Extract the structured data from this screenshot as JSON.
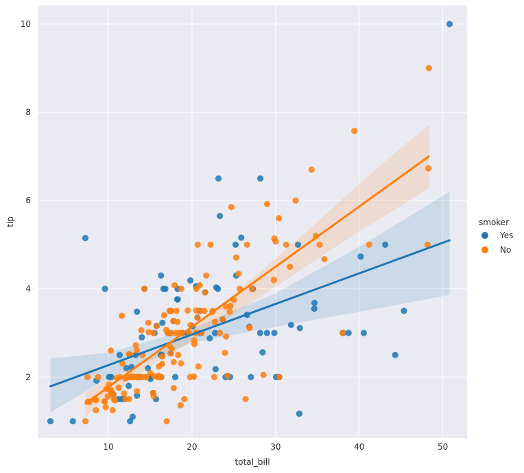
{
  "chart_data": {
    "type": "scatter",
    "title": "",
    "xlabel": "total_bill",
    "ylabel": "tip",
    "xlim": [
      1.55,
      52.9
    ],
    "ylim": [
      0.62,
      10.42
    ],
    "xticks": [
      10,
      20,
      30,
      40,
      50
    ],
    "yticks": [
      2,
      4,
      6,
      8,
      10
    ],
    "grid": true,
    "background": "#EAEAF2",
    "legend": {
      "title": "smoker",
      "placement": "outside-right"
    },
    "series": [
      {
        "name": "Yes",
        "color": "#1F77B4",
        "regression": {
          "x": [
            3.07,
            50.81
          ],
          "y": [
            1.79,
            5.1
          ]
        },
        "ci_upper": [
          [
            3.07,
            2.42
          ],
          [
            10,
            2.55
          ],
          [
            20,
            3.1
          ],
          [
            30,
            3.9
          ],
          [
            40,
            4.95
          ],
          [
            50.81,
            6.2
          ]
        ],
        "ci_lower": [
          [
            3.07,
            1.2
          ],
          [
            10,
            1.98
          ],
          [
            20,
            2.78
          ],
          [
            30,
            3.14
          ],
          [
            40,
            3.48
          ],
          [
            50.81,
            3.86
          ]
        ],
        "points": [
          [
            3.07,
            1.0
          ],
          [
            5.75,
            1.0
          ],
          [
            7.25,
            5.15
          ],
          [
            8.58,
            1.92
          ],
          [
            9.6,
            4.0
          ],
          [
            10.07,
            2.0
          ],
          [
            10.34,
            2.0
          ],
          [
            10.59,
            1.61
          ],
          [
            11.17,
            1.5
          ],
          [
            11.35,
            2.5
          ],
          [
            11.59,
            1.5
          ],
          [
            11.87,
            1.5
          ],
          [
            12.16,
            2.2
          ],
          [
            12.43,
            1.8
          ],
          [
            12.6,
            1.0
          ],
          [
            12.76,
            2.23
          ],
          [
            12.9,
            1.1
          ],
          [
            13.0,
            2.0
          ],
          [
            13.27,
            2.5
          ],
          [
            13.42,
            1.58
          ],
          [
            13.42,
            3.48
          ],
          [
            13.51,
            2.0
          ],
          [
            14.0,
            2.9
          ],
          [
            14.31,
            4.0
          ],
          [
            14.73,
            2.2
          ],
          [
            15.06,
            2.0
          ],
          [
            15.36,
            1.64
          ],
          [
            15.69,
            1.5
          ],
          [
            15.77,
            3.16
          ],
          [
            16.0,
            2.0
          ],
          [
            16.27,
            2.5
          ],
          [
            16.29,
            4.3
          ],
          [
            16.4,
            2.5
          ],
          [
            16.47,
            3.23
          ],
          [
            16.58,
            4.0
          ],
          [
            16.82,
            4.0
          ],
          [
            17.46,
            2.54
          ],
          [
            17.47,
            3.5
          ],
          [
            17.78,
            3.27
          ],
          [
            18.24,
            3.76
          ],
          [
            18.28,
            4.0
          ],
          [
            18.29,
            3.76
          ],
          [
            19.44,
            3.0
          ],
          [
            19.81,
            4.19
          ],
          [
            20.08,
            3.15
          ],
          [
            20.49,
            4.06
          ],
          [
            20.65,
            3.35
          ],
          [
            20.9,
            3.5
          ],
          [
            21.01,
            3.0
          ],
          [
            21.58,
            3.92
          ],
          [
            22.76,
            3.0
          ],
          [
            22.82,
            2.18
          ],
          [
            22.9,
            4.03
          ],
          [
            23.17,
            6.5
          ],
          [
            23.33,
            5.65
          ],
          [
            23.68,
            3.31
          ],
          [
            24.01,
            2.0
          ],
          [
            24.27,
            2.03
          ],
          [
            25.21,
            5.0
          ],
          [
            25.28,
            4.3
          ],
          [
            25.89,
            5.16
          ],
          [
            26.59,
            3.41
          ],
          [
            26.86,
            3.14
          ],
          [
            27.28,
            4.0
          ],
          [
            28.15,
            3.0
          ],
          [
            28.17,
            6.5
          ],
          [
            28.97,
            3.0
          ],
          [
            29.85,
            3.0
          ],
          [
            30.06,
            2.0
          ],
          [
            30.4,
            2.0
          ],
          [
            31.85,
            3.18
          ],
          [
            32.68,
            5.0
          ],
          [
            32.83,
            1.17
          ],
          [
            34.63,
            3.55
          ],
          [
            34.65,
            3.68
          ],
          [
            38.73,
            3.0
          ],
          [
            40.17,
            4.73
          ],
          [
            40.55,
            3.0
          ],
          [
            43.11,
            5.0
          ],
          [
            44.3,
            2.5
          ],
          [
            45.35,
            3.5
          ],
          [
            50.81,
            10.0
          ],
          [
            27.05,
            2.0
          ],
          [
            28.44,
            2.56
          ],
          [
            38.07,
            3.0
          ],
          [
            18.0,
            2.0
          ],
          [
            15.53,
            3.0
          ],
          [
            22.12,
            2.88
          ],
          [
            13.81,
            2.0
          ],
          [
            12.54,
            2.5
          ],
          [
            16.32,
            2.0
          ],
          [
            24.55,
            2.0
          ],
          [
            17.29,
            3.0
          ],
          [
            32.9,
            3.11
          ],
          [
            23.1,
            4.0
          ],
          [
            18.85,
            3.0
          ],
          [
            15.04,
            1.96
          ]
        ]
      },
      {
        "name": "No",
        "color": "#FF7F0E",
        "regression": {
          "x": [
            7.25,
            48.33
          ],
          "y": [
            1.4,
            7.0
          ]
        },
        "ci_upper": [
          [
            7.25,
            1.65
          ],
          [
            10,
            1.95
          ],
          [
            15,
            2.47
          ],
          [
            20,
            3.12
          ],
          [
            25,
            3.88
          ],
          [
            30,
            4.68
          ],
          [
            35,
            5.52
          ],
          [
            40,
            6.38
          ],
          [
            45,
            7.2
          ],
          [
            48.33,
            7.7
          ]
        ],
        "ci_lower": [
          [
            7.25,
            1.1
          ],
          [
            10,
            1.55
          ],
          [
            15,
            2.25
          ],
          [
            20,
            2.82
          ],
          [
            25,
            3.42
          ],
          [
            30,
            4.05
          ],
          [
            35,
            4.68
          ],
          [
            40,
            5.3
          ],
          [
            45,
            5.88
          ],
          [
            48.33,
            6.28
          ]
        ],
        "points": [
          [
            7.25,
            1.0
          ],
          [
            7.51,
            2.0
          ],
          [
            7.56,
            1.44
          ],
          [
            7.74,
            1.44
          ],
          [
            8.35,
            1.5
          ],
          [
            8.51,
            1.25
          ],
          [
            8.52,
            1.48
          ],
          [
            8.77,
            2.0
          ],
          [
            9.55,
            1.45
          ],
          [
            9.68,
            1.32
          ],
          [
            9.78,
            1.73
          ],
          [
            9.94,
            1.56
          ],
          [
            10.07,
            1.83
          ],
          [
            10.27,
            1.71
          ],
          [
            10.29,
            2.6
          ],
          [
            10.33,
            1.67
          ],
          [
            10.34,
            1.66
          ],
          [
            10.51,
            1.25
          ],
          [
            10.65,
            1.5
          ],
          [
            10.77,
            1.47
          ],
          [
            11.02,
            1.98
          ],
          [
            11.24,
            1.76
          ],
          [
            11.38,
            2.0
          ],
          [
            11.61,
            3.39
          ],
          [
            11.69,
            2.31
          ],
          [
            12.02,
            1.97
          ],
          [
            12.03,
            1.5
          ],
          [
            12.26,
            2.0
          ],
          [
            12.46,
            1.5
          ],
          [
            12.48,
            2.52
          ],
          [
            12.66,
            2.5
          ],
          [
            12.69,
            2.0
          ],
          [
            13.03,
            2.0
          ],
          [
            13.13,
            2.0
          ],
          [
            13.28,
            2.72
          ],
          [
            13.37,
            2.0
          ],
          [
            13.39,
            2.61
          ],
          [
            13.42,
            1.68
          ],
          [
            13.81,
            2.0
          ],
          [
            13.94,
            3.06
          ],
          [
            14.07,
            2.5
          ],
          [
            14.15,
            2.0
          ],
          [
            14.48,
            2.0
          ],
          [
            14.52,
            2.0
          ],
          [
            14.78,
            3.23
          ],
          [
            14.83,
            3.02
          ],
          [
            15.01,
            2.09
          ],
          [
            15.38,
            3.0
          ],
          [
            15.42,
            1.57
          ],
          [
            15.48,
            2.02
          ],
          [
            15.98,
            2.03
          ],
          [
            16.21,
            2.0
          ],
          [
            16.31,
            2.0
          ],
          [
            16.43,
            2.3
          ],
          [
            16.45,
            2.47
          ],
          [
            16.93,
            3.07
          ],
          [
            16.97,
            1.0
          ],
          [
            17.07,
            3.0
          ],
          [
            17.31,
            3.5
          ],
          [
            17.46,
            2.54
          ],
          [
            17.51,
            3.0
          ],
          [
            17.59,
            2.64
          ],
          [
            17.78,
            3.27
          ],
          [
            17.81,
            2.34
          ],
          [
            17.82,
            1.75
          ],
          [
            17.92,
            4.08
          ],
          [
            18.04,
            3.0
          ],
          [
            18.15,
            3.5
          ],
          [
            18.26,
            3.25
          ],
          [
            18.43,
            3.0
          ],
          [
            18.69,
            2.31
          ],
          [
            18.71,
            4.0
          ],
          [
            18.78,
            3.0
          ],
          [
            19.08,
            1.5
          ],
          [
            19.49,
            3.51
          ],
          [
            19.65,
            3.0
          ],
          [
            19.77,
            2.0
          ],
          [
            20.23,
            2.01
          ],
          [
            20.27,
            2.83
          ],
          [
            20.29,
            2.75
          ],
          [
            20.45,
            3.0
          ],
          [
            20.65,
            3.35
          ],
          [
            20.69,
            5.0
          ],
          [
            21.01,
            3.5
          ],
          [
            21.16,
            3.0
          ],
          [
            21.5,
            3.5
          ],
          [
            21.7,
            4.3
          ],
          [
            22.23,
            5.0
          ],
          [
            22.49,
            3.5
          ],
          [
            22.67,
            2.0
          ],
          [
            22.75,
            3.25
          ],
          [
            23.68,
            3.31
          ],
          [
            23.95,
            2.55
          ],
          [
            24.06,
            3.6
          ],
          [
            24.08,
            2.92
          ],
          [
            24.52,
            3.48
          ],
          [
            24.59,
            3.61
          ],
          [
            24.71,
            5.85
          ],
          [
            25.0,
            3.75
          ],
          [
            25.29,
            4.71
          ],
          [
            25.56,
            4.34
          ],
          [
            25.71,
            4.0
          ],
          [
            26.41,
            1.5
          ],
          [
            26.88,
            3.12
          ],
          [
            27.2,
            4.0
          ],
          [
            28.55,
            2.05
          ],
          [
            28.99,
            5.92
          ],
          [
            29.8,
            4.2
          ],
          [
            29.85,
            5.14
          ],
          [
            30.46,
            2.0
          ],
          [
            31.27,
            5.0
          ],
          [
            31.71,
            4.5
          ],
          [
            32.4,
            6.0
          ],
          [
            34.3,
            6.7
          ],
          [
            34.81,
            5.2
          ],
          [
            35.26,
            5.0
          ],
          [
            35.83,
            4.67
          ],
          [
            38.01,
            3.0
          ],
          [
            39.42,
            7.58
          ],
          [
            41.19,
            5.0
          ],
          [
            48.17,
            5.0
          ],
          [
            48.27,
            6.73
          ],
          [
            48.33,
            9.0
          ],
          [
            30.01,
            5.07
          ],
          [
            15.81,
            3.16
          ],
          [
            20.76,
            2.24
          ],
          [
            26.59,
            5.0
          ],
          [
            13.0,
            2.0
          ],
          [
            14.31,
            4.0
          ],
          [
            16.0,
            2.0
          ],
          [
            17.29,
            2.71
          ],
          [
            19.82,
            3.18
          ],
          [
            20.92,
            4.08
          ],
          [
            21.58,
            3.92
          ],
          [
            22.42,
            3.48
          ],
          [
            23.33,
            3.0
          ],
          [
            24.27,
            2.03
          ],
          [
            12.74,
            2.01
          ],
          [
            16.66,
            3.4
          ],
          [
            18.35,
            2.5
          ],
          [
            20.53,
            4.0
          ],
          [
            15.95,
            2.0
          ],
          [
            11.87,
            1.63
          ],
          [
            9.55,
            1.45
          ],
          [
            13.51,
            2.0
          ],
          [
            18.64,
            1.36
          ],
          [
            10.59,
            1.61
          ],
          [
            30.4,
            5.6
          ],
          [
            26.88,
            3.12
          ],
          [
            17.47,
            3.5
          ],
          [
            15.36,
            1.64
          ],
          [
            20.49,
            3.51
          ],
          [
            16.04,
            2.24
          ],
          [
            12.74,
            2.01
          ]
        ]
      }
    ]
  }
}
